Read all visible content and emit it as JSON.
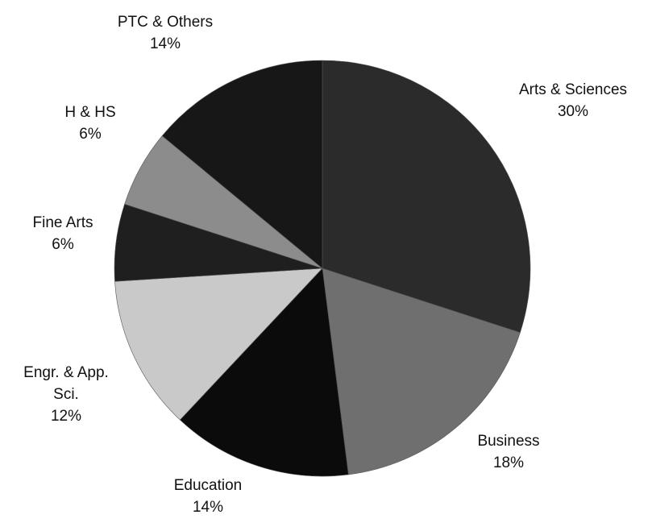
{
  "chart_data": {
    "type": "pie",
    "categories": [
      "Arts & Sciences",
      "Business",
      "Education",
      "Engr. & App. Sci.",
      "Fine Arts",
      "H & HS",
      "PTC & Others"
    ],
    "values": [
      30,
      18,
      14,
      12,
      6,
      6,
      14
    ],
    "value_labels": [
      "30%",
      "18%",
      "14%",
      "12%",
      "6%",
      "6%",
      "14%"
    ],
    "colors": [
      "#2b2b2b",
      "#6f6f6f",
      "#0b0b0b",
      "#c9c9c9",
      "#1f1f1f",
      "#8c8c8c",
      "#171717"
    ]
  }
}
